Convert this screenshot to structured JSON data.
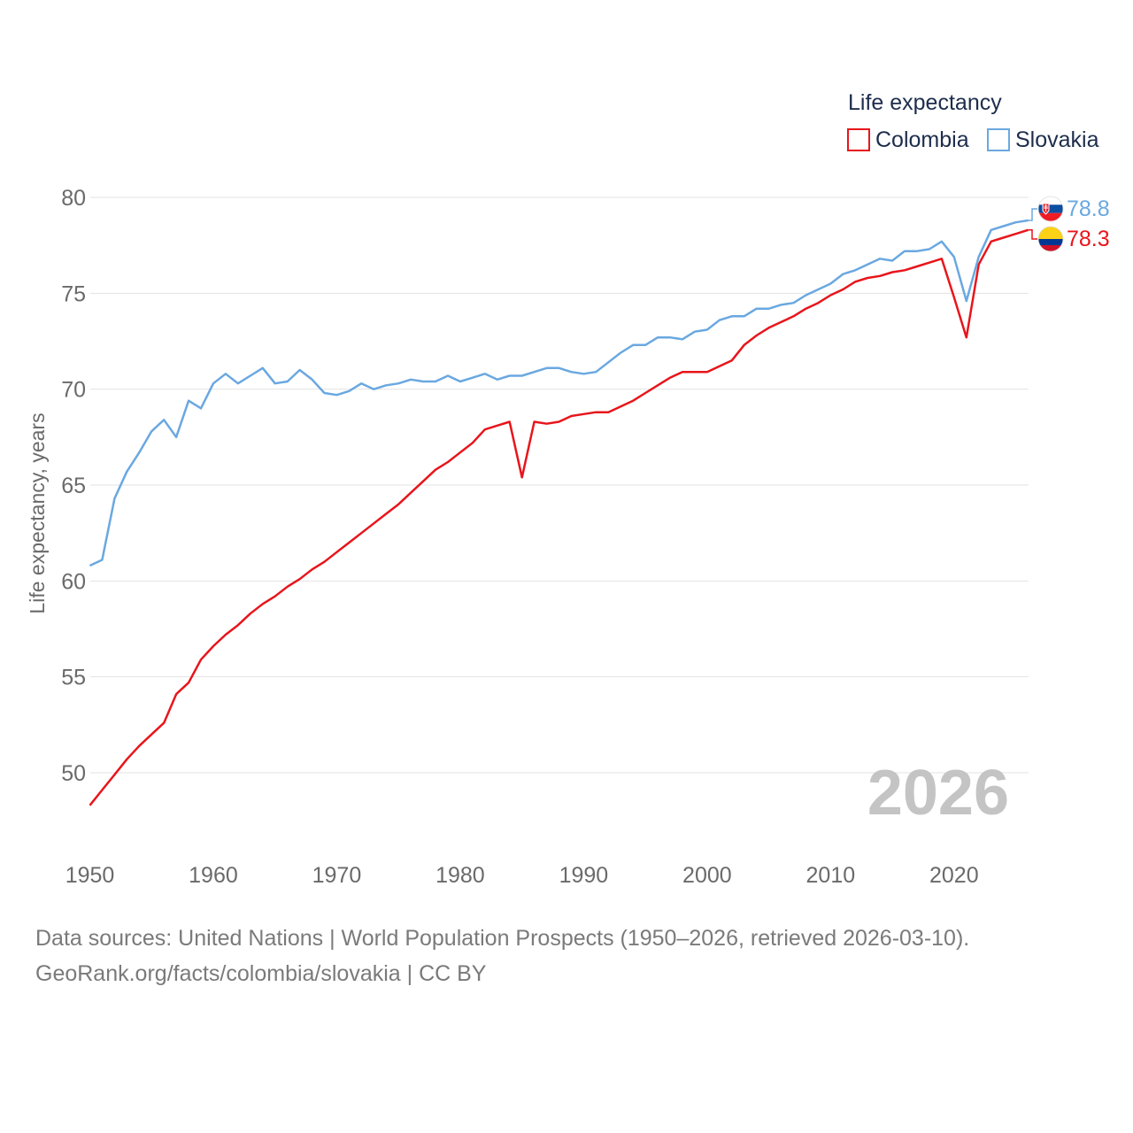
{
  "chart_data": {
    "type": "line",
    "ylabel": "Life expectancy, years",
    "xlim": [
      1950,
      2026
    ],
    "ylim": [
      47,
      81
    ],
    "x_ticks": [
      1950,
      1960,
      1970,
      1980,
      1990,
      2000,
      2010,
      2020
    ],
    "y_ticks": [
      50,
      55,
      60,
      65,
      70,
      75,
      80
    ],
    "grid": "horizontal",
    "legend": {
      "title": "Life expectancy",
      "placement": "top-right"
    },
    "year_watermark": "2026",
    "years": [
      1950,
      1951,
      1952,
      1953,
      1954,
      1955,
      1956,
      1957,
      1958,
      1959,
      1960,
      1961,
      1962,
      1963,
      1964,
      1965,
      1966,
      1967,
      1968,
      1969,
      1970,
      1971,
      1972,
      1973,
      1974,
      1975,
      1976,
      1977,
      1978,
      1979,
      1980,
      1981,
      1982,
      1983,
      1984,
      1985,
      1986,
      1987,
      1988,
      1989,
      1990,
      1991,
      1992,
      1993,
      1994,
      1995,
      1996,
      1997,
      1998,
      1999,
      2000,
      2001,
      2002,
      2003,
      2004,
      2005,
      2006,
      2007,
      2008,
      2009,
      2010,
      2011,
      2012,
      2013,
      2014,
      2015,
      2016,
      2017,
      2018,
      2019,
      2020,
      2021,
      2022,
      2023,
      2024,
      2025,
      2026
    ],
    "series": [
      {
        "name": "Colombia",
        "color": "#e8151b",
        "flag": "colombia-flag",
        "end_label": "78.3",
        "values": [
          48.3,
          49.1,
          49.9,
          50.7,
          51.4,
          52.0,
          52.6,
          54.1,
          54.7,
          55.9,
          56.6,
          57.2,
          57.7,
          58.3,
          58.8,
          59.2,
          59.7,
          60.1,
          60.6,
          61.0,
          61.5,
          62.0,
          62.5,
          63.0,
          63.5,
          64.0,
          64.6,
          65.2,
          65.8,
          66.2,
          66.7,
          67.2,
          67.9,
          68.1,
          68.3,
          65.4,
          68.3,
          68.2,
          68.3,
          68.6,
          68.7,
          68.8,
          68.8,
          69.1,
          69.4,
          69.8,
          70.2,
          70.6,
          70.9,
          70.9,
          70.9,
          71.2,
          71.5,
          72.3,
          72.8,
          73.2,
          73.5,
          73.8,
          74.2,
          74.5,
          74.9,
          75.2,
          75.6,
          75.8,
          75.9,
          76.1,
          76.2,
          76.4,
          76.6,
          76.8,
          74.8,
          72.7,
          76.5,
          77.7,
          77.9,
          78.1,
          78.3
        ]
      },
      {
        "name": "Slovakia",
        "color": "#6aa8e0",
        "flag": "slovakia-flag",
        "end_label": "78.8",
        "values": [
          60.8,
          61.1,
          64.3,
          65.7,
          66.7,
          67.8,
          68.4,
          67.5,
          69.4,
          69.0,
          70.3,
          70.8,
          70.3,
          70.7,
          71.1,
          70.3,
          70.4,
          71.0,
          70.5,
          69.8,
          69.7,
          69.9,
          70.3,
          70.0,
          70.2,
          70.3,
          70.5,
          70.4,
          70.4,
          70.7,
          70.4,
          70.6,
          70.8,
          70.5,
          70.7,
          70.7,
          70.9,
          71.1,
          71.1,
          70.9,
          70.8,
          70.9,
          71.4,
          71.9,
          72.3,
          72.3,
          72.7,
          72.7,
          72.6,
          73.0,
          73.1,
          73.6,
          73.8,
          73.8,
          74.2,
          74.2,
          74.4,
          74.5,
          74.9,
          75.2,
          75.5,
          76.0,
          76.2,
          76.5,
          76.8,
          76.7,
          77.2,
          77.2,
          77.3,
          77.7,
          76.9,
          74.6,
          76.9,
          78.3,
          78.5,
          78.7,
          78.8
        ]
      }
    ]
  },
  "footer": {
    "line1": "Data sources: United Nations | World Population Prospects (1950–2026, retrieved 2026-03-10).",
    "line2": "GeoRank.org/facts/colombia/slovakia | CC BY"
  }
}
